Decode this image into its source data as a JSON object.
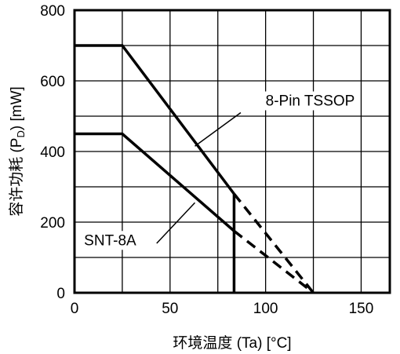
{
  "chart_data": {
    "type": "line",
    "title": "",
    "xlabel": "环境温度 (Ta) [°C]",
    "ylabel_main": "容许功耗 (P",
    "ylabel_sub": "D",
    "ylabel_tail": ") [mW]",
    "xlim": [
      0,
      165
    ],
    "ylim": [
      0,
      800
    ],
    "xticks": [
      0,
      50,
      100,
      150
    ],
    "yticks": [
      0,
      200,
      400,
      600,
      800
    ],
    "x_grid": [
      0,
      25,
      50,
      75,
      100,
      125,
      150
    ],
    "y_grid": [
      0,
      100,
      200,
      300,
      400,
      500,
      600,
      700,
      800
    ],
    "grid": true,
    "series": [
      {
        "name": "8-Pin TSSOP",
        "solid": [
          [
            0,
            700
          ],
          [
            25,
            700
          ],
          [
            83.5,
            280
          ]
        ],
        "drop": [
          [
            83.5,
            280
          ],
          [
            83.5,
            0
          ]
        ],
        "dashed": [
          [
            83.5,
            280
          ],
          [
            125,
            0
          ]
        ]
      },
      {
        "name": "SNT-8A",
        "solid": [
          [
            0,
            450
          ],
          [
            25,
            450
          ],
          [
            83.5,
            175
          ]
        ],
        "dashed": [
          [
            83.5,
            175
          ],
          [
            125,
            0
          ]
        ]
      }
    ],
    "annotations": [
      {
        "text": "8-Pin TSSOP",
        "series": "8-Pin TSSOP",
        "text_at": [
          100,
          530
        ],
        "leader_from": [
          87,
          510
        ],
        "leader_to": [
          63,
          415
        ]
      },
      {
        "text": "SNT-8A",
        "series": "SNT-8A",
        "text_at": [
          5,
          135
        ],
        "leader_from": [
          43,
          140
        ],
        "leader_to": [
          63,
          255
        ]
      }
    ]
  }
}
